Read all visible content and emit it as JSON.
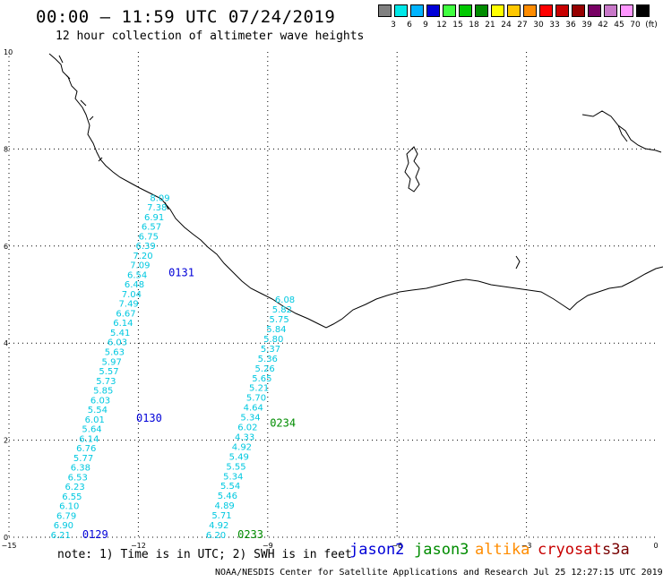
{
  "title": "00:00 – 11:59 UTC 07/24/2019",
  "subtitle": "12 hour collection of altimeter wave heights",
  "color_scale": {
    "labels": [
      "3",
      "6",
      "9",
      "12",
      "15",
      "18",
      "21",
      "24",
      "27",
      "30",
      "33",
      "36",
      "39",
      "42",
      "45",
      "70",
      "(ft)"
    ],
    "colors": [
      "#808080",
      "#00e8e8",
      "#00b4ff",
      "#0000d8",
      "#40ff40",
      "#00c800",
      "#008c00",
      "#ffff00",
      "#ffc800",
      "#ff8c00",
      "#ff0000",
      "#c80000",
      "#960000",
      "#780064",
      "#c878c8",
      "#ff96ff",
      "#000000"
    ]
  },
  "map": {
    "lon_ticks": [
      "−15",
      "−12",
      "−9",
      "−6",
      "−3",
      "0"
    ],
    "lat_ticks": [
      "0",
      "2",
      "4",
      "6",
      "8",
      "10"
    ],
    "lon_range": [
      -15,
      0
    ],
    "lat_range": [
      0,
      10
    ],
    "grid": true
  },
  "tracks": [
    {
      "satellite": "jason3",
      "color": "#00c8e0",
      "time_labels": [
        {
          "text": "0129",
          "lon": -13.3,
          "lat": 0.0,
          "color": "#0000d8"
        },
        {
          "text": "0130",
          "lon": -12.05,
          "lat": 2.4,
          "color": "#0000d8"
        },
        {
          "text": "0131",
          "lon": -11.3,
          "lat": 5.4,
          "color": "#0000d8"
        }
      ],
      "values": [
        "6.21",
        "6.90",
        "6.79",
        "6.10",
        "6.55",
        "6.23",
        "6.53",
        "6.38",
        "5.77",
        "6.76",
        "6.14",
        "5.64",
        "6.01",
        "5.54",
        "6.03",
        "5.85",
        "5.73",
        "5.57",
        "5.97",
        "5.63",
        "6.03",
        "5.41",
        "6.14",
        "6.67",
        "7.49",
        "7.04",
        "6.48",
        "6.54",
        "7.09",
        "7.20",
        "6.39",
        "6.75",
        "6.57",
        "6.91",
        "7.38",
        "8.09"
      ],
      "start": {
        "lon": -13.8,
        "lat": 0.0
      },
      "end": {
        "lon": -11.5,
        "lat": 6.95
      }
    },
    {
      "satellite": "jason3",
      "color": "#00c8e0",
      "time_labels": [
        {
          "text": "0233",
          "lon": -9.7,
          "lat": 0.0,
          "color": "#008c00"
        },
        {
          "text": "0234",
          "lon": -8.95,
          "lat": 2.3,
          "color": "#008c00"
        }
      ],
      "values": [
        "6.20",
        "4.92",
        "5.71",
        "4.89",
        "5.46",
        "5.54",
        "5.34",
        "5.55",
        "5.49",
        "4.92",
        "4.33",
        "6.02",
        "5.34",
        "4.64",
        "5.70",
        "5.21",
        "5.65",
        "5.26",
        "5.36",
        "5.37",
        "5.80",
        "5.84",
        "5.75",
        "5.82",
        "6.08"
      ],
      "start": {
        "lon": -10.2,
        "lat": 0.0
      },
      "end": {
        "lon": -8.6,
        "lat": 4.85
      }
    }
  ],
  "satellites": [
    {
      "name": "jason2",
      "color": "#0000d8"
    },
    {
      "name": "jason3",
      "color": "#008c00"
    },
    {
      "name": "altika",
      "color": "#ff8c00"
    },
    {
      "name": "cryosat",
      "color": "#c80000"
    },
    {
      "name": "s3a",
      "color": "#780000"
    }
  ],
  "note": "note: 1) Time is in UTC; 2) SWH is in feet",
  "credit": "NOAA/NESDIS Center for Satellite Applications and Research    Jul 25 12:27:15 UTC 2019"
}
